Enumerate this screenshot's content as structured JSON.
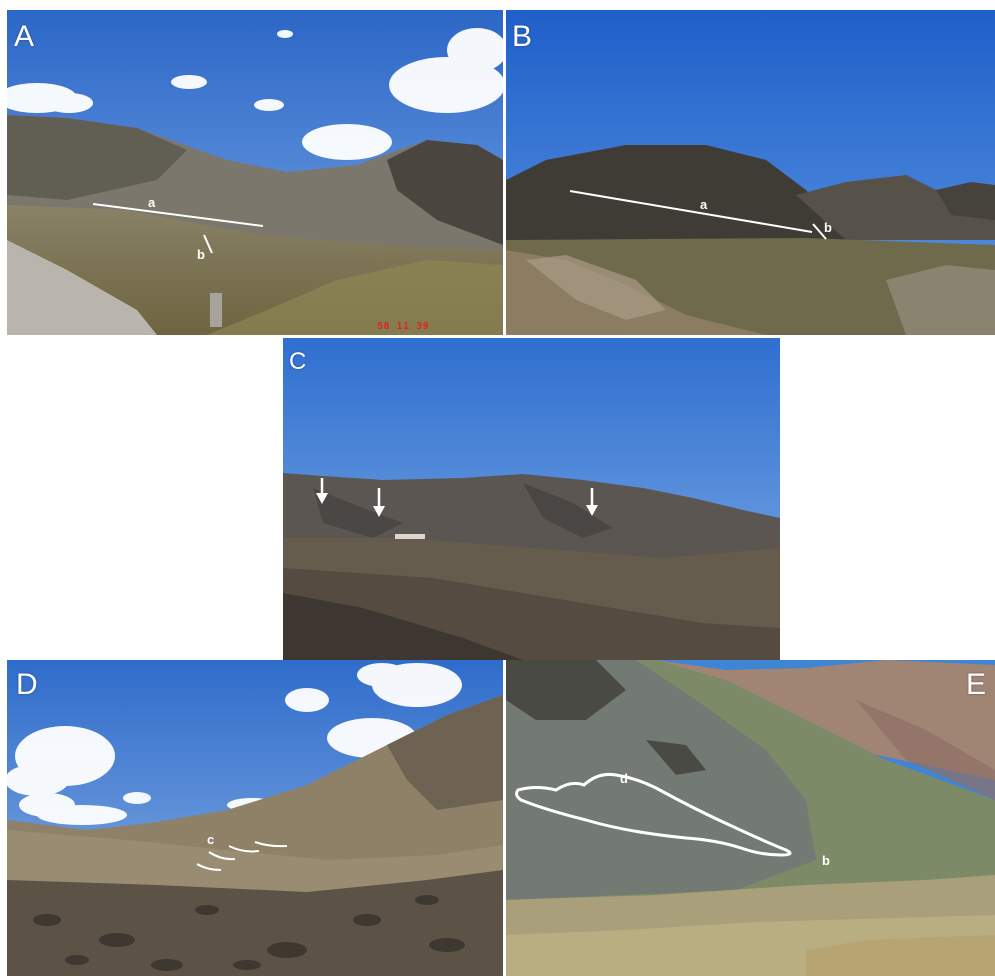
{
  "panels": {
    "A": {
      "label": "A",
      "annotations": {
        "a": "a",
        "b": "b"
      },
      "timestamp": "58 11 39"
    },
    "B": {
      "label": "B",
      "annotations": {
        "a": "a",
        "b": "b"
      }
    },
    "C": {
      "label": "C",
      "arrow_count": 3
    },
    "D": {
      "label": "D",
      "annotations": {
        "c": "c"
      }
    },
    "E": {
      "label": "E",
      "annotations": {
        "d": "d",
        "b": "b"
      }
    }
  },
  "colors": {
    "sky": "#3f7fd1",
    "annotation": "#ffffff",
    "timestamp": "#e3241f"
  }
}
